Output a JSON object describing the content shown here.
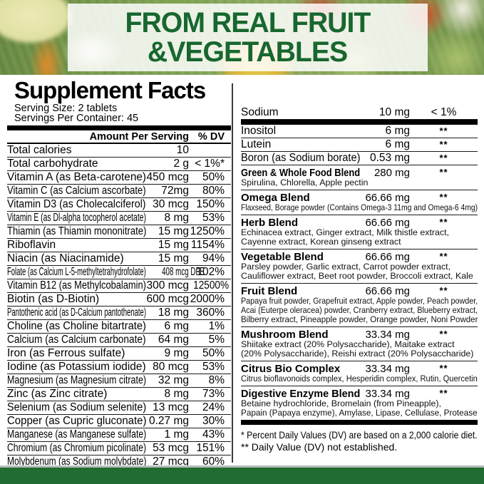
{
  "header": {
    "line1": "FROM REAL FRUIT",
    "line2": "&VEGETABLES"
  },
  "colors": {
    "brand_green": "#17672e",
    "footer_green": "#216c31"
  },
  "supplement_facts": {
    "title": "Supplement Facts",
    "serving_size": "Serving Size: 2 tablets",
    "servings_per_container": "Servings Per Container: 45",
    "amount_header": "Amount Per Serving",
    "dv_header": "% DV",
    "left_rows": [
      {
        "name": "Total calories",
        "amount": "10",
        "dv": ""
      },
      {
        "name": "Total carbohydrate",
        "amount": "2 g",
        "dv": "< 1%*"
      },
      {
        "name": "Vitamin A (as Beta-carotene)",
        "amount": "450 mcg",
        "dv": "50%"
      },
      {
        "name": "Vitamin C (as Calcium ascorbate)",
        "amount": "72mg",
        "dv": "80%"
      },
      {
        "name": "Vitamin D3 (as Cholecalciferol)",
        "amount": "30 mcg",
        "dv": "150%"
      },
      {
        "name": "Vitamin E (as Dl-alpha tocopherol acetate)",
        "amount": "8 mg",
        "dv": "53%"
      },
      {
        "name": "Thiamin (as Thiamin mononitrate)",
        "amount": "15 mg",
        "dv": "1250%"
      },
      {
        "name": "Riboflavin",
        "amount": "15 mg",
        "dv": "1154%"
      },
      {
        "name": "Niacin (as Niacinamide)",
        "amount": "15 mg",
        "dv": "94%"
      },
      {
        "name": "Folate (as Calcium L-5-methyltetrahydrofolate)",
        "amount": "408 mcg DFE",
        "dv": "102%"
      },
      {
        "name": "Vitamin B12 (as Methylcobalamin)",
        "amount": "300 mcg",
        "dv": "12500%"
      },
      {
        "name": "Biotin (as D-Biotin)",
        "amount": "600 mcg",
        "dv": "2000%"
      },
      {
        "name": "Pantothenic acid (as D-Calcium pantothenate)",
        "amount": "18 mg",
        "dv": "360%"
      },
      {
        "name": "Choline (as Choline bitartrate)",
        "amount": "6 mg",
        "dv": "1%"
      },
      {
        "name": "Calcium (as Calcium carbonate)",
        "amount": "64 mg",
        "dv": "5%"
      },
      {
        "name": "Iron (as Ferrous sulfate)",
        "amount": "9 mg",
        "dv": "50%"
      },
      {
        "name": "Iodine (as Potassium iodide)",
        "amount": "80 mcg",
        "dv": "53%"
      },
      {
        "name": "Magnesium (as Magnesium citrate)",
        "amount": "32 mg",
        "dv": "8%"
      },
      {
        "name": "Zinc (as Zinc citrate)",
        "amount": "8 mg",
        "dv": "73%"
      },
      {
        "name": "Selenium (as Sodium selenite)",
        "amount": "13 mcg",
        "dv": "24%"
      },
      {
        "name": "Copper (as Cupric gluconate)",
        "amount": "0.27 mg",
        "dv": "30%"
      },
      {
        "name": "Manganese (as Manganese sulfate)",
        "amount": "1 mg",
        "dv": "43%"
      },
      {
        "name": "Chromium (as Chromium picolinate)",
        "amount": "53 mcg",
        "dv": "151%"
      },
      {
        "name": "Molybdenum (as Sodium molybdate)",
        "amount": "27 mcg",
        "dv": "60%"
      }
    ],
    "sodium_row": {
      "name": "Sodium",
      "amount": "10 mg",
      "dv": "< 1%"
    },
    "right_rows": [
      {
        "name": "Inositol",
        "amount": "6 mg",
        "dv": "**"
      },
      {
        "name": "Lutein",
        "amount": "6 mg",
        "dv": "**"
      },
      {
        "name": "Boron (as Sodium borate)",
        "amount": "0.53 mg",
        "dv": "**"
      },
      {
        "name": "Green & Whole Food Blend",
        "amount": "280 mg",
        "dv": "**",
        "ingredients": [
          "Spirulina, Chlorella, Apple pectin"
        ]
      },
      {
        "name": "Omega Blend",
        "amount": "66.66 mg",
        "dv": "**",
        "ingredients": [
          "Flaxseed, Borage powder (Contains Omega-3 11mg and Omega-6 4mg)"
        ]
      },
      {
        "name": "Herb Blend",
        "amount": "66.66 mg",
        "dv": "**",
        "ingredients": [
          "Echinacea extract, Ginger extract, Milk thistle extract,",
          "Cayenne extract, Korean ginseng extract"
        ]
      },
      {
        "name": "Vegetable Blend",
        "amount": "66.66 mg",
        "dv": "**",
        "ingredients": [
          "Parsley powder, Garlic extract, Carrot powder extract,",
          "Cauliflower extract, Beet root powder, Broccoli extract, Kale"
        ]
      },
      {
        "name": "Fruit Blend",
        "amount": "66.66 mg",
        "dv": "**",
        "ingredients": [
          "Papaya fruit powder, Grapefruit extract, Apple powder, Peach powder,",
          "Acai (Euterpe oleracea) powder, Cranberry extract, Blueberry extract,",
          "Bilberry extract, Pineapple powder, Orange powder, Noni Powder"
        ]
      },
      {
        "name": "Mushroom Blend",
        "amount": "33.34 mg",
        "dv": "**",
        "ingredients": [
          "Shiitake extract (20% Polysaccharide), Maitake extract",
          "(20% Polysaccharide), Reishi extract (20% Polysaccharide)"
        ]
      },
      {
        "name": "Citrus Bio Complex",
        "amount": "33.34 mg",
        "dv": "**",
        "ingredients": [
          "Citrus bioflavonoids complex, Hesperidin complex, Rutin, Quercetin"
        ]
      },
      {
        "name": "Digestive Enzyme Blend",
        "amount": "33.34 mg",
        "dv": "**",
        "ingredients": [
          "Betaine hydrochloride, Bromelain (from Pineapple),",
          "Papain (Papaya enzyme), Amylase, Lipase, Cellulase,  Protease"
        ]
      }
    ],
    "footnotes": [
      "* Percent Daily Values (DV) are based on a 2,000 calorie diet.",
      "** Daily Value (DV) not established."
    ]
  }
}
